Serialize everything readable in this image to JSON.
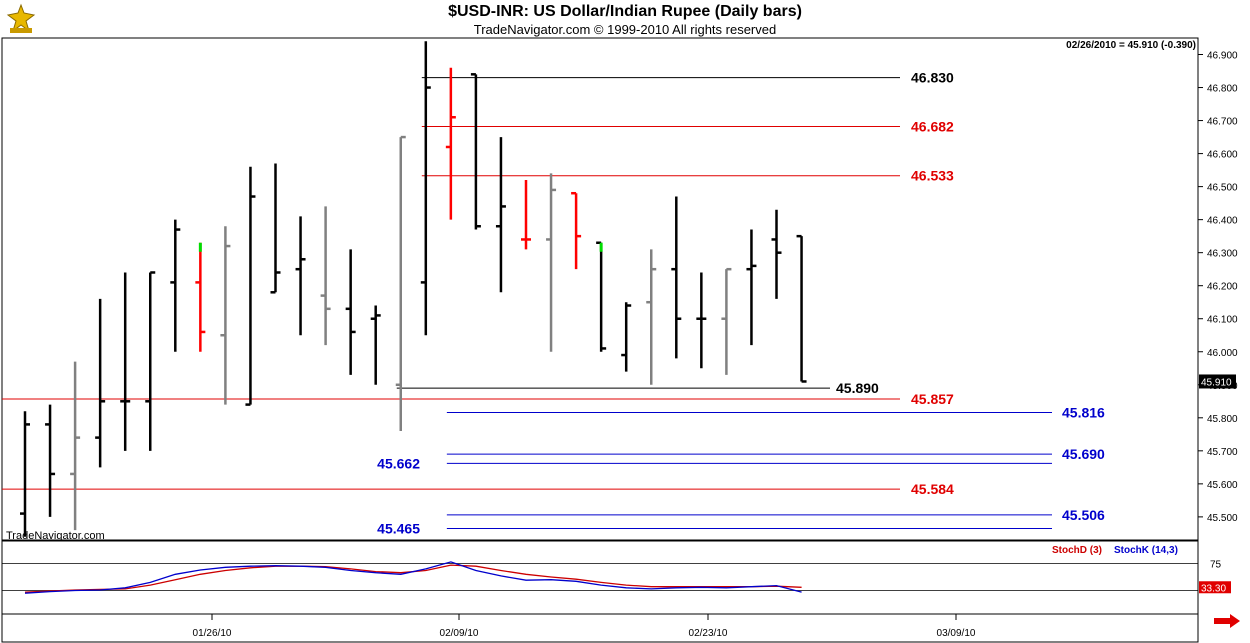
{
  "header": {
    "title": "$USD-INR:  US Dollar/Indian Rupee  (Daily bars)",
    "subtitle": "TradeNavigator.com © 1999-2010 All rights reserved",
    "readout": "02/26/2010 = 45.910 (-0.390)",
    "watermark": "TradeNavigator.com"
  },
  "colors": {
    "up_bar": "#000000",
    "down_bar": "#808080",
    "red_bar": "#ff0000",
    "green_tick": "#00dd00",
    "fib_red": "#e00000",
    "fib_blue": "#0000cc",
    "stochD": "#cc0000",
    "stochK": "#0000cc"
  },
  "chart_data": {
    "type": "ohlc",
    "ylim": [
      45.43,
      46.95
    ],
    "yticks": [
      "46.900",
      "46.800",
      "46.700",
      "46.600",
      "46.500",
      "46.400",
      "46.300",
      "46.200",
      "46.100",
      "46.000",
      "45.900",
      "45.800",
      "45.700",
      "45.600",
      "45.500"
    ],
    "xticks": [
      "01/26/10",
      "02/09/10",
      "02/23/10",
      "03/09/10"
    ],
    "last_price_label": "45.910",
    "bars": [
      {
        "o": 45.51,
        "h": 45.82,
        "l": 45.44,
        "c": 45.78,
        "color": "black"
      },
      {
        "o": 45.78,
        "h": 45.84,
        "l": 45.5,
        "c": 45.63,
        "color": "black"
      },
      {
        "o": 45.63,
        "h": 45.97,
        "l": 45.46,
        "c": 45.74,
        "color": "gray"
      },
      {
        "o": 45.74,
        "h": 46.16,
        "l": 45.65,
        "c": 45.85,
        "color": "black"
      },
      {
        "o": 45.85,
        "h": 46.24,
        "l": 45.7,
        "c": 45.85,
        "color": "black"
      },
      {
        "o": 45.85,
        "h": 46.24,
        "l": 45.7,
        "c": 46.24,
        "color": "black"
      },
      {
        "o": 46.21,
        "h": 46.4,
        "l": 46.0,
        "c": 46.37,
        "color": "black"
      },
      {
        "o": 46.21,
        "h": 46.33,
        "l": 46.0,
        "c": 46.06,
        "color": "red",
        "tip": "green"
      },
      {
        "o": 46.05,
        "h": 46.38,
        "l": 45.84,
        "c": 46.32,
        "color": "gray"
      },
      {
        "o": 45.84,
        "h": 46.56,
        "l": 45.84,
        "c": 46.47,
        "color": "black"
      },
      {
        "o": 46.18,
        "h": 46.57,
        "l": 46.18,
        "c": 46.24,
        "color": "black"
      },
      {
        "o": 46.25,
        "h": 46.41,
        "l": 46.05,
        "c": 46.28,
        "color": "black"
      },
      {
        "o": 46.17,
        "h": 46.44,
        "l": 46.02,
        "c": 46.13,
        "color": "gray"
      },
      {
        "o": 46.13,
        "h": 46.31,
        "l": 45.93,
        "c": 46.06,
        "color": "black"
      },
      {
        "o": 46.1,
        "h": 46.14,
        "l": 45.9,
        "c": 46.11,
        "color": "black"
      },
      {
        "o": 45.9,
        "h": 46.65,
        "l": 45.76,
        "c": 46.65,
        "color": "gray"
      },
      {
        "o": 46.21,
        "h": 46.94,
        "l": 46.05,
        "c": 46.8,
        "color": "black"
      },
      {
        "o": 46.62,
        "h": 46.86,
        "l": 46.4,
        "c": 46.71,
        "color": "red"
      },
      {
        "o": 46.84,
        "h": 46.84,
        "l": 46.37,
        "c": 46.38,
        "color": "black"
      },
      {
        "o": 46.38,
        "h": 46.65,
        "l": 46.18,
        "c": 46.44,
        "color": "black"
      },
      {
        "o": 46.34,
        "h": 46.52,
        "l": 46.31,
        "c": 46.34,
        "color": "red"
      },
      {
        "o": 46.34,
        "h": 46.54,
        "l": 46.0,
        "c": 46.49,
        "color": "gray"
      },
      {
        "o": 46.48,
        "h": 46.48,
        "l": 46.25,
        "c": 46.35,
        "color": "red"
      },
      {
        "o": 46.33,
        "h": 46.33,
        "l": 46.0,
        "c": 46.01,
        "color": "black",
        "tip": "green"
      },
      {
        "o": 45.99,
        "h": 46.15,
        "l": 45.94,
        "c": 46.14,
        "color": "black"
      },
      {
        "o": 46.15,
        "h": 46.31,
        "l": 45.9,
        "c": 46.25,
        "color": "gray"
      },
      {
        "o": 46.25,
        "h": 46.47,
        "l": 45.98,
        "c": 46.1,
        "color": "black"
      },
      {
        "o": 46.1,
        "h": 46.24,
        "l": 45.95,
        "c": 46.1,
        "color": "black"
      },
      {
        "o": 46.1,
        "h": 46.25,
        "l": 45.93,
        "c": 46.25,
        "color": "gray"
      },
      {
        "o": 46.25,
        "h": 46.37,
        "l": 46.02,
        "c": 46.26,
        "color": "black"
      },
      {
        "o": 46.34,
        "h": 46.43,
        "l": 46.16,
        "c": 46.3,
        "color": "black"
      },
      {
        "o": 46.35,
        "h": 46.35,
        "l": 45.91,
        "c": 45.91,
        "color": "black"
      }
    ],
    "levels": [
      {
        "label": "46.830",
        "value": 46.83,
        "color": "black",
        "from_bar": 16,
        "to_bar": 40,
        "label_side": "right"
      },
      {
        "label": "46.682",
        "value": 46.682,
        "color": "red",
        "from_bar": 16,
        "to_bar": 40,
        "label_side": "right"
      },
      {
        "label": "46.533",
        "value": 46.533,
        "color": "red",
        "from_bar": 16,
        "to_bar": 40,
        "label_side": "right"
      },
      {
        "label": "45.890",
        "value": 45.89,
        "color": "black",
        "from_bar": 15,
        "to_bar": 33,
        "label_side": "right"
      },
      {
        "label": "45.857",
        "value": 45.857,
        "color": "red",
        "from_bar": 0,
        "to_bar": 40,
        "label_side": "right"
      },
      {
        "label": "45.816",
        "value": 45.816,
        "color": "blue",
        "from_bar": 17,
        "to_bar": 42,
        "label_side": "right"
      },
      {
        "label": "45.690",
        "value": 45.69,
        "color": "blue",
        "from_bar": 17,
        "to_bar": 42,
        "label_side": "right"
      },
      {
        "label": "45.662",
        "value": 45.662,
        "color": "blue",
        "from_bar": 17,
        "to_bar": 42,
        "label_side": "left"
      },
      {
        "label": "45.584",
        "value": 45.584,
        "color": "red",
        "from_bar": 0,
        "to_bar": 40,
        "label_side": "right"
      },
      {
        "label": "45.506",
        "value": 45.506,
        "color": "blue",
        "from_bar": 17,
        "to_bar": 42,
        "label_side": "right"
      },
      {
        "label": "45.465",
        "value": 45.465,
        "color": "blue",
        "from_bar": 17,
        "to_bar": 42,
        "label_side": "left"
      }
    ],
    "stochastic": {
      "ylim": [
        0,
        100
      ],
      "ref_lines": [
        75,
        25
      ],
      "ref_label": "75",
      "last_label": "33.30",
      "legend": [
        "StochD (3)",
        "StochK (14,3)"
      ],
      "d_values": [
        22,
        24,
        26,
        27,
        28,
        35,
        45,
        55,
        62,
        67,
        70,
        70,
        69,
        65,
        60,
        58,
        62,
        72,
        70,
        62,
        55,
        50,
        46,
        40,
        35,
        32,
        32,
        32,
        32,
        32,
        33,
        31
      ],
      "k_values": [
        20,
        23,
        25,
        26,
        30,
        40,
        55,
        63,
        68,
        70,
        71,
        70,
        68,
        62,
        58,
        55,
        65,
        78,
        62,
        52,
        44,
        45,
        42,
        35,
        30,
        28,
        30,
        31,
        30,
        32,
        34,
        22
      ]
    }
  }
}
